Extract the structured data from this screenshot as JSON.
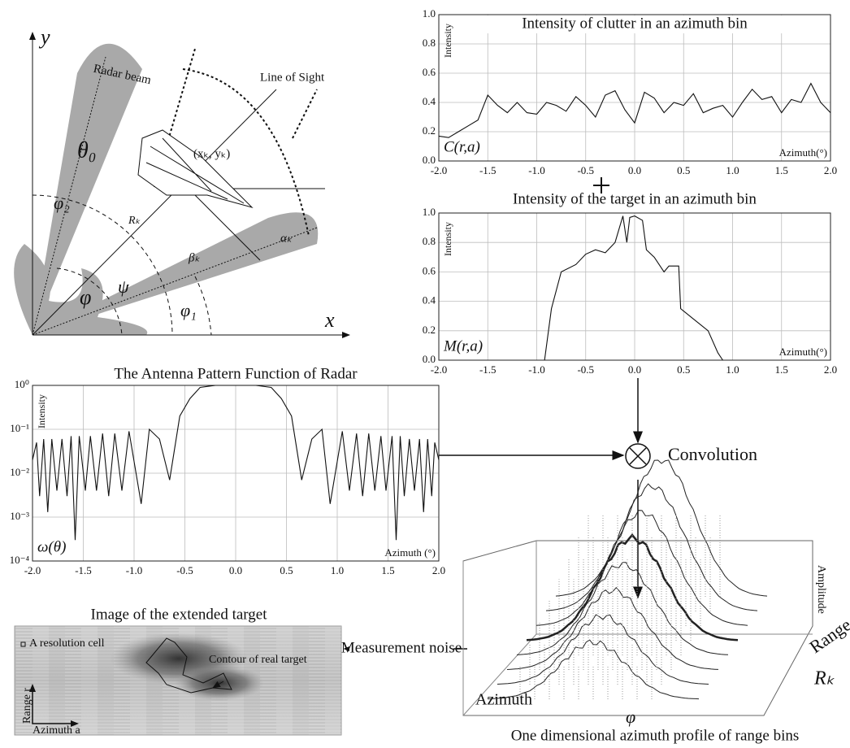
{
  "chart_data": [
    {
      "type": "line",
      "title": "Intensity of clutter in an azimuth bin",
      "y_label": "Intensity",
      "x_label": "Azimuth(°)",
      "annotation": "C(r,a)",
      "color": "#111111",
      "grid": true,
      "x": [
        -2.0,
        -1.9,
        -1.8,
        -1.7,
        -1.6,
        -1.5,
        -1.4,
        -1.3,
        -1.2,
        -1.1,
        -1.0,
        -0.9,
        -0.8,
        -0.7,
        -0.6,
        -0.5,
        -0.4,
        -0.3,
        -0.2,
        -0.1,
        0.0,
        0.1,
        0.2,
        0.3,
        0.4,
        0.5,
        0.6,
        0.7,
        0.8,
        0.9,
        1.0,
        1.1,
        1.2,
        1.3,
        1.4,
        1.5,
        1.6,
        1.7,
        1.8,
        1.9,
        2.0
      ],
      "values": [
        0.17,
        0.16,
        0.2,
        0.24,
        0.28,
        0.45,
        0.38,
        0.33,
        0.4,
        0.33,
        0.32,
        0.4,
        0.38,
        0.34,
        0.44,
        0.38,
        0.3,
        0.45,
        0.48,
        0.35,
        0.26,
        0.47,
        0.43,
        0.33,
        0.4,
        0.38,
        0.46,
        0.33,
        0.36,
        0.38,
        0.3,
        0.4,
        0.49,
        0.42,
        0.44,
        0.33,
        0.42,
        0.4,
        0.53,
        0.4,
        0.33
      ],
      "xlim": [
        -2,
        2
      ],
      "ylim": [
        0,
        1
      ],
      "xticks": [
        {
          "value": -2,
          "label": "-2.0"
        },
        -1.5,
        {
          "value": -1,
          "label": "-1.0"
        },
        -0.5,
        {
          "value": 0,
          "label": "0.0"
        },
        0.5,
        {
          "value": 1,
          "label": "1.0"
        },
        1.5,
        {
          "value": 2,
          "label": "2.0"
        }
      ],
      "yticks": [
        {
          "value": 0,
          "label": "0.0"
        },
        0.2,
        0.4,
        0.6,
        0.8,
        {
          "value": 1,
          "label": "1.0"
        }
      ]
    },
    {
      "type": "line",
      "title": "Intensity of the target in an azimuth bin",
      "y_label": "Intensity",
      "x_label": "Azimuth(°)",
      "annotation": "M(r,a)",
      "color": "#111111",
      "grid": true,
      "x": [
        -0.92,
        -0.85,
        -0.75,
        -0.6,
        -0.5,
        -0.4,
        -0.3,
        -0.2,
        -0.12,
        -0.08,
        -0.05,
        0.0,
        0.08,
        0.12,
        0.2,
        0.3,
        0.35,
        0.45,
        0.47,
        0.6,
        0.75,
        0.85,
        0.9
      ],
      "values": [
        0,
        0.35,
        0.6,
        0.65,
        0.72,
        0.75,
        0.73,
        0.8,
        0.98,
        0.8,
        0.97,
        0.98,
        0.95,
        0.75,
        0.7,
        0.6,
        0.64,
        0.64,
        0.35,
        0.28,
        0.2,
        0.05,
        0
      ],
      "xlim": [
        -2,
        2
      ],
      "ylim": [
        0,
        1
      ],
      "xticks": [
        {
          "value": -2,
          "label": "-2.0"
        },
        -1.5,
        {
          "value": -1,
          "label": "-1.0"
        },
        -0.5,
        {
          "value": 0,
          "label": "0.0"
        },
        0.5,
        {
          "value": 1,
          "label": "1.0"
        },
        1.5,
        {
          "value": 2,
          "label": "2.0"
        }
      ],
      "yticks": [
        {
          "value": 0,
          "label": "0.0"
        },
        0.2,
        0.4,
        0.6,
        0.8,
        {
          "value": 1,
          "label": "1.0"
        }
      ]
    },
    {
      "type": "line",
      "title": "The Antenna Pattern Function of Radar",
      "y_label": "Intensity",
      "x_label": "Azimuth (°)",
      "annotation": "ω(θ)",
      "color": "#111111",
      "grid": true,
      "log_y": true,
      "x": [
        -2.0,
        -1.96,
        -1.93,
        -1.89,
        -1.85,
        -1.81,
        -1.76,
        -1.71,
        -1.66,
        -1.62,
        -1.58,
        -1.54,
        -1.48,
        -1.43,
        -1.37,
        -1.31,
        -1.25,
        -1.19,
        -1.12,
        -1.05,
        -0.93,
        -0.85,
        -0.75,
        -0.65,
        -0.55,
        -0.45,
        -0.35,
        -0.2,
        0.0,
        0.2,
        0.35,
        0.45,
        0.55,
        0.65,
        0.75,
        0.85,
        0.93,
        1.05,
        1.12,
        1.19,
        1.25,
        1.31,
        1.37,
        1.43,
        1.48,
        1.54,
        1.58,
        1.62,
        1.66,
        1.71,
        1.76,
        1.81,
        1.85,
        1.89,
        1.93,
        1.96,
        2.0
      ],
      "values": [
        0.02,
        0.05,
        0.003,
        0.06,
        0.0013,
        0.06,
        0.004,
        0.06,
        0.003,
        0.07,
        0.0003,
        0.07,
        0.004,
        0.07,
        0.004,
        0.08,
        0.003,
        0.08,
        0.004,
        0.09,
        0.002,
        0.1,
        0.06,
        0.007,
        0.2,
        0.5,
        0.9,
        1,
        1,
        1,
        0.9,
        0.5,
        0.2,
        0.007,
        0.06,
        0.1,
        0.002,
        0.09,
        0.004,
        0.08,
        0.003,
        0.08,
        0.004,
        0.07,
        0.004,
        0.07,
        0.0003,
        0.07,
        0.003,
        0.06,
        0.004,
        0.06,
        0.0013,
        0.06,
        0.003,
        0.05,
        0.02
      ],
      "xlim": [
        -2,
        2
      ],
      "ylim": [
        0.0001,
        1
      ],
      "xticks": [
        {
          "value": -2,
          "label": "-2.0"
        },
        -1.5,
        {
          "value": -1,
          "label": "-1.0"
        },
        -0.5,
        {
          "value": 0,
          "label": "0.0"
        },
        0.5,
        {
          "value": 1,
          "label": "1.0"
        },
        1.5,
        {
          "value": 2,
          "label": "2.0"
        }
      ],
      "yticks": [
        {
          "value": 0.0001,
          "label": "10⁻⁴"
        },
        {
          "value": 0.001,
          "label": "10⁻³"
        },
        {
          "value": 0.01,
          "label": "10⁻²"
        },
        {
          "value": 0.1,
          "label": "10⁻¹"
        },
        {
          "value": 1,
          "label": "10⁰"
        }
      ]
    }
  ],
  "diagram": {
    "geometry": {
      "y_axis": "y",
      "x_axis": "x",
      "beam": "Radar beam",
      "los": "Line of Sight",
      "target_pos": "(xₖ, yₖ)",
      "theta0": "θ₀",
      "phi2": "φ₂",
      "range": "Rₖ",
      "alpha": "αₖ",
      "beta": "βₖ",
      "psi": "ψ",
      "phi": "φ",
      "phi1": "φ₁"
    },
    "convolution": "Convolution",
    "profile": {
      "caption": "One dimensional azimuth profile of range bins",
      "amplitude": "Amplitude",
      "range": "Range",
      "range_k": "Rₖ",
      "azimuth": "Azimuth",
      "phi": "φ"
    },
    "noise": "Measurement noise",
    "image": {
      "title": "Image of the extended target",
      "cell": "A resolution cell",
      "contour": "Contour of real target",
      "range": "Range r",
      "azimuth": "Azimuth a"
    }
  }
}
